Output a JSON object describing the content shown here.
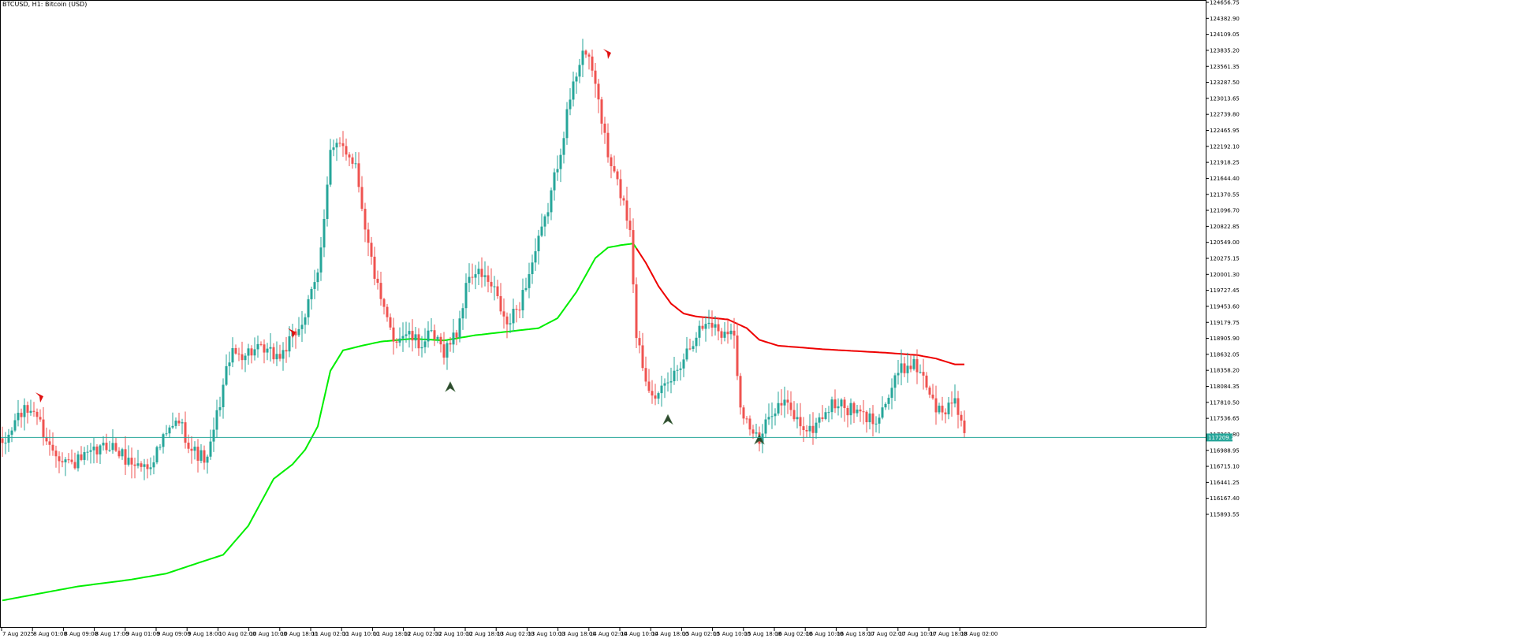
{
  "window": {
    "title": "BTCUSD, H1: Bitcoin (USD)"
  },
  "chart_data": {
    "type": "candlestick",
    "symbol": "BTCUSD",
    "timeframe": "H1",
    "title": "BTCUSD, H1: Bitcoin (USD)",
    "ylim": [
      114800,
      124656.75
    ],
    "y_ticks": [
      "124656.75",
      "124382.90",
      "124109.05",
      "123835.20",
      "123561.35",
      "123287.50",
      "123013.65",
      "122739.80",
      "122465.95",
      "122192.10",
      "121918.25",
      "121644.40",
      "121370.55",
      "121096.70",
      "120822.85",
      "120549.00",
      "120275.15",
      "120001.30",
      "119727.45",
      "119453.60",
      "119179.75",
      "118905.90",
      "118632.05",
      "118358.20",
      "118084.35",
      "117810.50",
      "117536.65",
      "117262.80",
      "116988.95",
      "116715.10",
      "116441.25",
      "116167.40",
      "115893.55"
    ],
    "x_ticks": [
      "7 Aug 2025",
      "8 Aug 01:00",
      "8 Aug 09:00",
      "8 Aug 17:00",
      "9 Aug 01:00",
      "9 Aug 09:00",
      "9 Aug 18:00",
      "10 Aug 02:00",
      "10 Aug 10:00",
      "10 Aug 18:00",
      "11 Aug 02:00",
      "11 Aug 10:00",
      "11 Aug 18:00",
      "12 Aug 02:00",
      "12 Aug 10:00",
      "12 Aug 18:00",
      "13 Aug 02:00",
      "13 Aug 10:00",
      "13 Aug 18:00",
      "14 Aug 02:00",
      "14 Aug 10:00",
      "14 Aug 18:00",
      "15 Aug 02:00",
      "15 Aug 10:00",
      "15 Aug 18:00",
      "16 Aug 02:00",
      "16 Aug 10:00",
      "16 Aug 18:00",
      "17 Aug 02:00",
      "17 Aug 10:00",
      "17 Aug 18:00",
      "18 Aug 02:00"
    ],
    "current_price": "117209.20",
    "colors": {
      "up": "#26a69a",
      "down": "#ef5350",
      "ma_bull": "#00ee00",
      "ma_bear": "#ee0000",
      "price_line": "#26a69a",
      "axis": "#000000"
    },
    "anchors": [
      {
        "i": 0,
        "p": 117000
      },
      {
        "i": 5,
        "p": 117600
      },
      {
        "i": 10,
        "p": 117700
      },
      {
        "i": 15,
        "p": 117050
      },
      {
        "i": 22,
        "p": 116750
      },
      {
        "i": 28,
        "p": 116900
      },
      {
        "i": 34,
        "p": 117100
      },
      {
        "i": 40,
        "p": 116800
      },
      {
        "i": 46,
        "p": 116700
      },
      {
        "i": 52,
        "p": 117250
      },
      {
        "i": 56,
        "p": 117500
      },
      {
        "i": 60,
        "p": 117000
      },
      {
        "i": 65,
        "p": 116800
      },
      {
        "i": 72,
        "p": 118600
      },
      {
        "i": 80,
        "p": 118700
      },
      {
        "i": 88,
        "p": 118600
      },
      {
        "i": 92,
        "p": 118900
      },
      {
        "i": 96,
        "p": 119300
      },
      {
        "i": 100,
        "p": 120000
      },
      {
        "i": 104,
        "p": 122100
      },
      {
        "i": 108,
        "p": 122200
      },
      {
        "i": 112,
        "p": 121900
      },
      {
        "i": 116,
        "p": 120500
      },
      {
        "i": 120,
        "p": 119500
      },
      {
        "i": 124,
        "p": 118900
      },
      {
        "i": 128,
        "p": 119000
      },
      {
        "i": 132,
        "p": 118800
      },
      {
        "i": 136,
        "p": 118950
      },
      {
        "i": 140,
        "p": 118700
      },
      {
        "i": 144,
        "p": 119000
      },
      {
        "i": 148,
        "p": 120000
      },
      {
        "i": 152,
        "p": 120000
      },
      {
        "i": 156,
        "p": 119700
      },
      {
        "i": 160,
        "p": 119100
      },
      {
        "i": 164,
        "p": 119500
      },
      {
        "i": 168,
        "p": 120200
      },
      {
        "i": 172,
        "p": 120900
      },
      {
        "i": 176,
        "p": 121900
      },
      {
        "i": 180,
        "p": 123000
      },
      {
        "i": 184,
        "p": 123900
      },
      {
        "i": 188,
        "p": 123300
      },
      {
        "i": 192,
        "p": 122000
      },
      {
        "i": 196,
        "p": 121400
      },
      {
        "i": 199,
        "p": 120800
      },
      {
        "i": 201,
        "p": 119000
      },
      {
        "i": 204,
        "p": 118200
      },
      {
        "i": 208,
        "p": 117900
      },
      {
        "i": 212,
        "p": 118200
      },
      {
        "i": 216,
        "p": 118600
      },
      {
        "i": 220,
        "p": 119000
      },
      {
        "i": 224,
        "p": 119200
      },
      {
        "i": 228,
        "p": 119000
      },
      {
        "i": 230,
        "p": 119100
      },
      {
        "i": 232,
        "p": 118900
      },
      {
        "i": 234,
        "p": 117800
      },
      {
        "i": 236,
        "p": 117500
      },
      {
        "i": 238,
        "p": 117300
      },
      {
        "i": 240,
        "p": 117100
      },
      {
        "i": 244,
        "p": 117700
      },
      {
        "i": 248,
        "p": 117800
      },
      {
        "i": 252,
        "p": 117500
      },
      {
        "i": 256,
        "p": 117300
      },
      {
        "i": 260,
        "p": 117600
      },
      {
        "i": 264,
        "p": 117800
      },
      {
        "i": 268,
        "p": 117700
      },
      {
        "i": 272,
        "p": 117600
      },
      {
        "i": 276,
        "p": 117500
      },
      {
        "i": 280,
        "p": 117800
      },
      {
        "i": 284,
        "p": 118300
      },
      {
        "i": 288,
        "p": 118500
      },
      {
        "i": 292,
        "p": 118300
      },
      {
        "i": 295,
        "p": 117800
      },
      {
        "i": 298,
        "p": 117600
      },
      {
        "i": 302,
        "p": 117900
      },
      {
        "i": 305,
        "p": 117300
      }
    ],
    "moving_average": [
      {
        "i": 0,
        "p": 114420
      },
      {
        "i": 24,
        "p": 114660
      },
      {
        "i": 40,
        "p": 114770
      },
      {
        "i": 52,
        "p": 114880
      },
      {
        "i": 62,
        "p": 115060
      },
      {
        "i": 70,
        "p": 115200
      },
      {
        "i": 78,
        "p": 115700
      },
      {
        "i": 86,
        "p": 116500
      },
      {
        "i": 92,
        "p": 116750
      },
      {
        "i": 96,
        "p": 117000
      },
      {
        "i": 100,
        "p": 117400
      },
      {
        "i": 104,
        "p": 118350
      },
      {
        "i": 108,
        "p": 118700
      },
      {
        "i": 114,
        "p": 118780
      },
      {
        "i": 120,
        "p": 118850
      },
      {
        "i": 130,
        "p": 118900
      },
      {
        "i": 140,
        "p": 118870
      },
      {
        "i": 150,
        "p": 118960
      },
      {
        "i": 160,
        "p": 119020
      },
      {
        "i": 170,
        "p": 119080
      },
      {
        "i": 176,
        "p": 119250
      },
      {
        "i": 182,
        "p": 119700
      },
      {
        "i": 188,
        "p": 120280
      },
      {
        "i": 192,
        "p": 120460
      },
      {
        "i": 196,
        "p": 120500
      },
      {
        "i": 200,
        "p": 120530
      },
      {
        "i": 204,
        "p": 120200
      },
      {
        "i": 208,
        "p": 119800
      },
      {
        "i": 212,
        "p": 119500
      },
      {
        "i": 216,
        "p": 119330
      },
      {
        "i": 220,
        "p": 119280
      },
      {
        "i": 224,
        "p": 119260
      },
      {
        "i": 230,
        "p": 119230
      },
      {
        "i": 236,
        "p": 119080
      },
      {
        "i": 240,
        "p": 118880
      },
      {
        "i": 246,
        "p": 118780
      },
      {
        "i": 260,
        "p": 118720
      },
      {
        "i": 270,
        "p": 118690
      },
      {
        "i": 280,
        "p": 118660
      },
      {
        "i": 290,
        "p": 118620
      },
      {
        "i": 296,
        "p": 118560
      },
      {
        "i": 302,
        "p": 118460
      }
    ],
    "ma_turn_index": 201,
    "signals": [
      {
        "type": "sell",
        "i": 12,
        "p": 117900
      },
      {
        "type": "sell",
        "i": 92,
        "p": 119000
      },
      {
        "type": "buy",
        "i": 142,
        "p": 118080
      },
      {
        "type": "sell",
        "i": 192,
        "p": 123780
      },
      {
        "type": "buy",
        "i": 211,
        "p": 117520
      },
      {
        "type": "buy",
        "i": 240,
        "p": 117180
      }
    ]
  }
}
